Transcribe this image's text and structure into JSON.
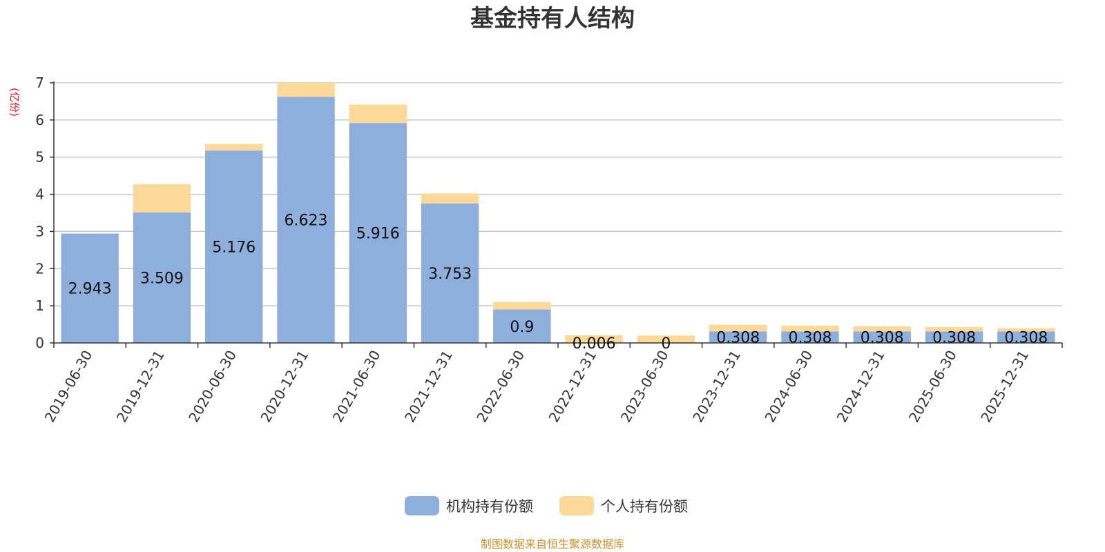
{
  "chart_data": {
    "type": "bar",
    "stacked": true,
    "title": "基金持有人结构",
    "unit_label": "(亿份)",
    "xlabel": "",
    "ylabel": "",
    "ylim": [
      0,
      7
    ],
    "yticks": [
      0,
      1,
      2,
      3,
      4,
      5,
      6,
      7
    ],
    "grid": true,
    "legend_position": "bottom-center",
    "categories": [
      "2019-06-30",
      "2019-12-31",
      "2020-06-30",
      "2020-12-31",
      "2021-06-30",
      "2021-12-31",
      "2022-06-30",
      "2022-12-31",
      "2023-06-30",
      "2023-12-31",
      "2024-06-30",
      "2024-12-31",
      "2025-06-30",
      "2025-12-31"
    ],
    "series": [
      {
        "name": "机构持有份额",
        "color": "#8eaedc",
        "values": [
          2.943,
          3.509,
          5.176,
          6.623,
          5.916,
          3.753,
          0.9,
          0.006,
          0,
          0.308,
          0.308,
          0.308,
          0.308,
          0.308
        ],
        "labels": [
          "2.943",
          "3.509",
          "5.176",
          "6.623",
          "5.916",
          "3.753",
          "0.9",
          "0.006",
          "0",
          "0.308",
          "0.308",
          "0.308",
          "0.308",
          "0.308"
        ]
      },
      {
        "name": "个人持有份额",
        "color": "#fdd999",
        "values": [
          0.0,
          0.76,
          0.18,
          0.38,
          0.5,
          0.27,
          0.2,
          0.2,
          0.2,
          0.18,
          0.16,
          0.14,
          0.12,
          0.09
        ]
      }
    ],
    "source": "制图数据来自恒生聚源数据库"
  }
}
